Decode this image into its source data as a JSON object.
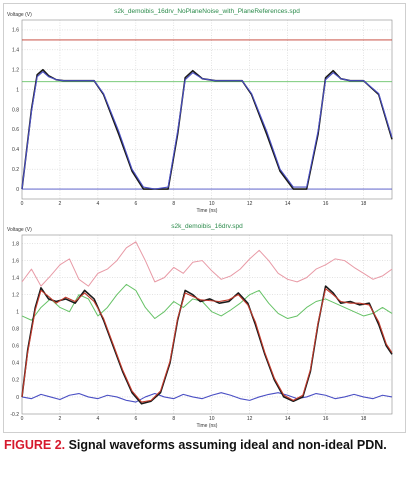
{
  "figure": {
    "caption_number": "FIGURE 2.",
    "caption_text": " Signal waveforms assuming ideal and non-ideal PDN."
  },
  "chart_data": [
    {
      "type": "line",
      "title": "s2k_demoibis_16drv_NoPlaneNoise_with_PlaneReferences.spd",
      "xlabel": "Time (ns)",
      "ylabel": "Voltage (V)",
      "xlim": [
        0,
        19.5
      ],
      "ylim": [
        -0.1,
        1.7
      ],
      "xticks": [
        0,
        2,
        4,
        6,
        8,
        10,
        12,
        14,
        16,
        18
      ],
      "yticks": [
        0,
        0.2,
        0.4,
        0.6,
        0.8,
        1,
        1.2,
        1.4,
        1.6
      ],
      "grid": true,
      "colors": {
        "black": "#1a1a1a",
        "red": "#c0392b",
        "blue": "#4a4fc4",
        "green": "#66c266",
        "pink": "#e89aa6"
      },
      "series": [
        {
          "color": "red",
          "x": [
            0.8
          ],
          "y": [
            1.5
          ]
        },
        {
          "color": "green",
          "x": [
            0.8
          ],
          "y": [
            1.08
          ]
        },
        {
          "color": "blue",
          "x": [
            0.8
          ],
          "y": [
            0.0
          ]
        },
        {
          "color": "black",
          "x": [
            0,
            0.5,
            0.8,
            1.1,
            1.4,
            1.8,
            2.2,
            3.8,
            4.3,
            5.1,
            5.8,
            6.4,
            7.0,
            7.7,
            8.2,
            8.6,
            9.0,
            9.5,
            10.2,
            11.6,
            12.1,
            12.9,
            13.6,
            14.3,
            15.0,
            15.6,
            16.0,
            16.4,
            16.8,
            17.3,
            18.0,
            18.8,
            19.5
          ],
          "y": [
            0.0,
            0.8,
            1.15,
            1.2,
            1.14,
            1.1,
            1.09,
            1.09,
            0.95,
            0.55,
            0.18,
            0.0,
            0.0,
            0.0,
            0.55,
            1.12,
            1.19,
            1.11,
            1.09,
            1.09,
            0.95,
            0.55,
            0.18,
            0.0,
            0.0,
            0.55,
            1.12,
            1.19,
            1.11,
            1.09,
            1.09,
            0.95,
            0.5
          ]
        },
        {
          "color": "blue",
          "x": [
            0,
            0.5,
            0.8,
            1.1,
            1.4,
            1.8,
            2.2,
            3.8,
            4.3,
            5.1,
            5.8,
            6.4,
            7.0,
            7.7,
            8.2,
            8.6,
            9.0,
            9.5,
            10.2,
            11.6,
            12.1,
            12.9,
            13.6,
            14.3,
            15.0,
            15.6,
            16.0,
            16.4,
            16.8,
            17.3,
            18.0,
            18.8,
            19.5
          ],
          "y": [
            0.0,
            0.78,
            1.13,
            1.18,
            1.13,
            1.1,
            1.09,
            1.09,
            0.96,
            0.58,
            0.2,
            0.02,
            0.0,
            0.02,
            0.58,
            1.1,
            1.17,
            1.11,
            1.09,
            1.09,
            0.96,
            0.58,
            0.2,
            0.02,
            0.02,
            0.58,
            1.1,
            1.17,
            1.11,
            1.09,
            1.09,
            0.96,
            0.52
          ]
        }
      ]
    },
    {
      "type": "line",
      "title": "s2k_demoibis_16drv.spd",
      "xlabel": "Time (ns)",
      "ylabel": "Voltage (V)",
      "xlim": [
        0,
        19.5
      ],
      "ylim": [
        -0.2,
        1.9
      ],
      "xticks": [
        0,
        2,
        4,
        6,
        8,
        10,
        12,
        14,
        16,
        18
      ],
      "yticks": [
        -0.2,
        0,
        0.2,
        0.4,
        0.6,
        0.8,
        1,
        1.2,
        1.4,
        1.6,
        1.8
      ],
      "grid": true,
      "colors": {
        "black": "#1a1a1a",
        "red": "#c0392b",
        "blue": "#4a4fc4",
        "green": "#66c266",
        "pink": "#e89aa6"
      },
      "series": [
        {
          "color": "pink",
          "x": [
            0,
            0.5,
            1.0,
            1.5,
            2.0,
            2.5,
            3.0,
            3.5,
            4.0,
            4.5,
            5.0,
            5.5,
            6.0,
            6.5,
            7.0,
            7.5,
            8.0,
            8.5,
            9.0,
            9.5,
            10.0,
            10.5,
            11.0,
            11.5,
            12.0,
            12.5,
            13.0,
            13.5,
            14.0,
            14.5,
            15.0,
            15.5,
            16.0,
            16.5,
            17.0,
            17.5,
            18.0,
            18.5,
            19.0,
            19.5
          ],
          "y": [
            1.35,
            1.5,
            1.3,
            1.42,
            1.55,
            1.62,
            1.38,
            1.3,
            1.45,
            1.5,
            1.6,
            1.75,
            1.82,
            1.6,
            1.35,
            1.4,
            1.52,
            1.45,
            1.58,
            1.6,
            1.48,
            1.38,
            1.42,
            1.5,
            1.62,
            1.72,
            1.6,
            1.45,
            1.38,
            1.35,
            1.4,
            1.5,
            1.55,
            1.62,
            1.6,
            1.52,
            1.45,
            1.38,
            1.42,
            1.5
          ]
        },
        {
          "color": "green",
          "x": [
            0,
            0.5,
            1.0,
            1.5,
            2.0,
            2.5,
            3.0,
            3.5,
            4.0,
            4.5,
            5.0,
            5.5,
            6.0,
            6.5,
            7.0,
            7.5,
            8.0,
            8.5,
            9.0,
            9.5,
            10.0,
            10.5,
            11.0,
            11.5,
            12.0,
            12.5,
            13.0,
            13.5,
            14.0,
            14.5,
            15.0,
            15.5,
            16.0,
            16.5,
            17.0,
            17.5,
            18.0,
            18.5,
            19.0,
            19.5
          ],
          "y": [
            0.95,
            0.9,
            1.05,
            1.15,
            1.05,
            1.0,
            1.2,
            1.15,
            0.95,
            1.05,
            1.2,
            1.32,
            1.25,
            1.05,
            0.92,
            1.0,
            1.12,
            1.05,
            1.15,
            1.12,
            1.0,
            0.95,
            1.02,
            1.1,
            1.2,
            1.25,
            1.1,
            0.98,
            0.92,
            0.95,
            1.05,
            1.12,
            1.15,
            1.1,
            1.05,
            1.0,
            0.95,
            0.98,
            1.05,
            0.98
          ]
        },
        {
          "color": "blue",
          "x": [
            0,
            0.5,
            1.0,
            1.5,
            2.0,
            2.5,
            3.0,
            3.5,
            4.0,
            4.5,
            5.0,
            5.5,
            6.0,
            6.5,
            7.0,
            7.5,
            8.0,
            8.5,
            9.0,
            9.5,
            10.0,
            10.5,
            11.0,
            11.5,
            12.0,
            12.5,
            13.0,
            13.5,
            14.0,
            14.5,
            15.0,
            15.5,
            16.0,
            16.5,
            17.0,
            17.5,
            18.0,
            18.5,
            19.0,
            19.5
          ],
          "y": [
            0.0,
            -0.02,
            0.03,
            0.0,
            -0.03,
            0.02,
            0.04,
            0.0,
            -0.02,
            0.02,
            0.0,
            -0.04,
            -0.06,
            0.0,
            0.04,
            0.0,
            -0.02,
            0.03,
            0.0,
            -0.02,
            0.02,
            0.05,
            0.02,
            -0.02,
            -0.04,
            0.0,
            0.03,
            0.05,
            0.02,
            -0.02,
            0.0,
            0.04,
            0.02,
            -0.02,
            0.0,
            0.03,
            0.0,
            -0.02,
            0.02,
            0.0
          ]
        },
        {
          "color": "black",
          "x": [
            0,
            0.3,
            0.7,
            1.0,
            1.4,
            1.8,
            2.3,
            2.8,
            3.3,
            3.8,
            4.3,
            4.8,
            5.3,
            5.8,
            6.3,
            6.8,
            7.3,
            7.8,
            8.2,
            8.6,
            9.0,
            9.4,
            9.9,
            10.4,
            10.9,
            11.4,
            11.9,
            12.3,
            12.8,
            13.3,
            13.8,
            14.3,
            14.8,
            15.2,
            15.6,
            16.0,
            16.4,
            16.8,
            17.3,
            17.8,
            18.3,
            18.8,
            19.2,
            19.5
          ],
          "y": [
            0.0,
            0.55,
            1.05,
            1.28,
            1.15,
            1.12,
            1.15,
            1.1,
            1.25,
            1.15,
            0.9,
            0.6,
            0.3,
            0.05,
            -0.08,
            -0.05,
            0.05,
            0.4,
            0.9,
            1.25,
            1.2,
            1.12,
            1.15,
            1.1,
            1.12,
            1.22,
            1.1,
            0.85,
            0.5,
            0.2,
            0.0,
            -0.05,
            0.0,
            0.3,
            0.85,
            1.3,
            1.22,
            1.1,
            1.12,
            1.08,
            1.1,
            0.85,
            0.6,
            0.5
          ]
        },
        {
          "color": "red",
          "x": [
            0,
            0.3,
            0.7,
            1.0,
            1.4,
            1.8,
            2.3,
            2.8,
            3.3,
            3.8,
            4.3,
            4.8,
            5.3,
            5.8,
            6.3,
            6.8,
            7.3,
            7.8,
            8.2,
            8.6,
            9.0,
            9.4,
            9.9,
            10.4,
            10.9,
            11.4,
            11.9,
            12.3,
            12.8,
            13.3,
            13.8,
            14.3,
            14.8,
            15.2,
            15.6,
            16.0,
            16.4,
            16.8,
            17.3,
            17.8,
            18.3,
            18.8,
            19.2,
            19.5
          ],
          "y": [
            0.0,
            0.52,
            1.02,
            1.25,
            1.18,
            1.1,
            1.17,
            1.12,
            1.22,
            1.12,
            0.92,
            0.62,
            0.32,
            0.07,
            -0.06,
            -0.04,
            0.07,
            0.42,
            0.92,
            1.22,
            1.18,
            1.14,
            1.13,
            1.12,
            1.14,
            1.2,
            1.08,
            0.88,
            0.52,
            0.22,
            0.02,
            -0.04,
            0.02,
            0.32,
            0.87,
            1.27,
            1.2,
            1.12,
            1.1,
            1.1,
            1.08,
            0.88,
            0.62,
            0.52
          ]
        }
      ]
    }
  ]
}
